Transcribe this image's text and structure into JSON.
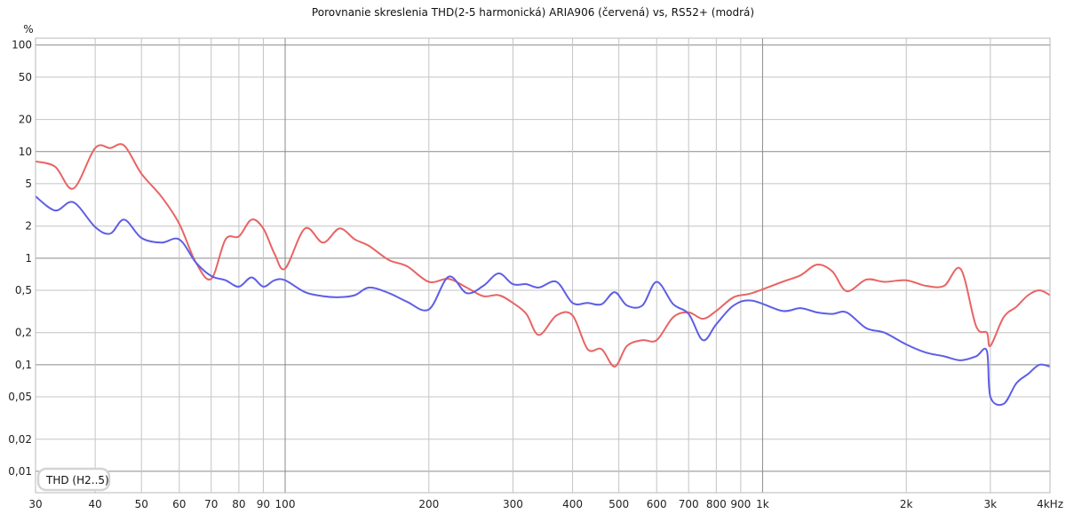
{
  "chart_data": {
    "type": "line",
    "title": "Porovnanie skreslenia THD(2-5 harmonická) ARIA906 (červená) vs, RS52+ (modrá)",
    "ylabel": "%",
    "xlabel": "",
    "xscale": "log",
    "yscale": "log",
    "xlim": [
      30,
      4000
    ],
    "ylim": [
      0.0063,
      116
    ],
    "grid": true,
    "legend_position": "bottom-left",
    "legend_label": "THD (H2..5)",
    "x_ticks": [
      {
        "v": 30,
        "label": "30"
      },
      {
        "v": 40,
        "label": "40"
      },
      {
        "v": 50,
        "label": "50"
      },
      {
        "v": 60,
        "label": "60"
      },
      {
        "v": 70,
        "label": "70"
      },
      {
        "v": 80,
        "label": "80"
      },
      {
        "v": 90,
        "label": "90"
      },
      {
        "v": 100,
        "label": "100"
      },
      {
        "v": 200,
        "label": "200"
      },
      {
        "v": 300,
        "label": "300"
      },
      {
        "v": 400,
        "label": "400"
      },
      {
        "v": 500,
        "label": "500"
      },
      {
        "v": 600,
        "label": "600"
      },
      {
        "v": 700,
        "label": "700"
      },
      {
        "v": 800,
        "label": "800"
      },
      {
        "v": 900,
        "label": "900"
      },
      {
        "v": 1000,
        "label": "1k"
      },
      {
        "v": 2000,
        "label": "2k"
      },
      {
        "v": 3000,
        "label": "3k"
      },
      {
        "v": 4000,
        "label": "4kHz"
      }
    ],
    "y_ticks": [
      {
        "v": 100,
        "label": "100"
      },
      {
        "v": 50,
        "label": "50"
      },
      {
        "v": 20,
        "label": "20"
      },
      {
        "v": 10,
        "label": "10"
      },
      {
        "v": 5,
        "label": "5"
      },
      {
        "v": 2,
        "label": "2"
      },
      {
        "v": 1,
        "label": "1"
      },
      {
        "v": 0.5,
        "label": "0,5"
      },
      {
        "v": 0.2,
        "label": "0,2"
      },
      {
        "v": 0.1,
        "label": "0,1"
      },
      {
        "v": 0.05,
        "label": "0,05"
      },
      {
        "v": 0.02,
        "label": "0,02"
      },
      {
        "v": 0.01,
        "label": "0,01"
      }
    ],
    "x": [
      30,
      33,
      36,
      40,
      43,
      46,
      50,
      55,
      60,
      65,
      70,
      75,
      80,
      85,
      90,
      95,
      100,
      110,
      120,
      130,
      140,
      150,
      165,
      180,
      200,
      220,
      240,
      260,
      280,
      300,
      320,
      340,
      370,
      400,
      430,
      460,
      490,
      520,
      560,
      600,
      650,
      700,
      750,
      800,
      870,
      950,
      1100,
      1200,
      1300,
      1400,
      1500,
      1650,
      1800,
      2000,
      2200,
      2400,
      2600,
      2800,
      2950,
      3000,
      3200,
      3400,
      3600,
      3800,
      4000
    ],
    "series": [
      {
        "color": "#e86464",
        "values": [
          8.1,
          7.2,
          4.5,
          10.8,
          10.8,
          11.4,
          6.2,
          3.8,
          2.1,
          0.91,
          0.64,
          1.5,
          1.6,
          2.3,
          1.9,
          1.1,
          0.8,
          1.9,
          1.4,
          1.9,
          1.5,
          1.3,
          0.96,
          0.84,
          0.6,
          0.64,
          0.53,
          0.44,
          0.45,
          0.38,
          0.3,
          0.19,
          0.29,
          0.29,
          0.14,
          0.14,
          0.096,
          0.15,
          0.17,
          0.17,
          0.28,
          0.31,
          0.27,
          0.32,
          0.43,
          0.47,
          0.6,
          0.69,
          0.87,
          0.75,
          0.49,
          0.63,
          0.6,
          0.62,
          0.55,
          0.55,
          0.79,
          0.23,
          0.2,
          0.15,
          0.28,
          0.35,
          0.45,
          0.5,
          0.45
        ]
      },
      {
        "color": "#5e5ee6",
        "values": [
          3.8,
          2.8,
          3.35,
          1.96,
          1.7,
          2.3,
          1.55,
          1.4,
          1.5,
          0.91,
          0.68,
          0.62,
          0.54,
          0.66,
          0.54,
          0.62,
          0.62,
          0.48,
          0.44,
          0.43,
          0.45,
          0.53,
          0.47,
          0.39,
          0.33,
          0.67,
          0.47,
          0.55,
          0.72,
          0.57,
          0.57,
          0.53,
          0.6,
          0.38,
          0.38,
          0.37,
          0.48,
          0.36,
          0.36,
          0.6,
          0.37,
          0.3,
          0.17,
          0.24,
          0.36,
          0.4,
          0.32,
          0.34,
          0.31,
          0.3,
          0.31,
          0.22,
          0.2,
          0.155,
          0.13,
          0.12,
          0.11,
          0.12,
          0.135,
          0.05,
          0.043,
          0.067,
          0.082,
          0.1,
          0.096
        ]
      }
    ]
  }
}
